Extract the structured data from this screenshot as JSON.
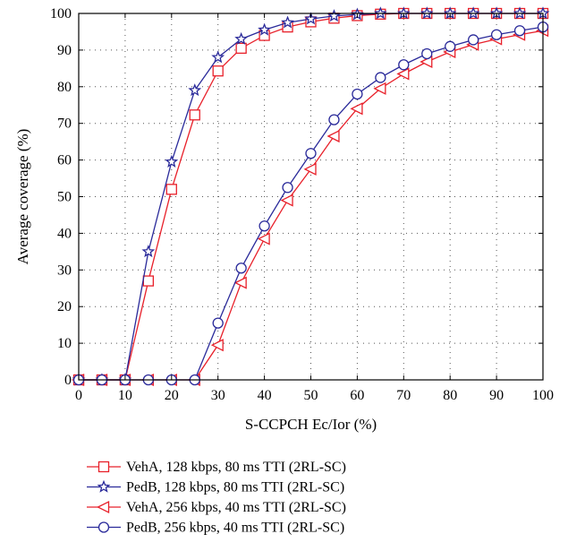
{
  "chart_data": {
    "type": "line",
    "title": "",
    "xlabel": "S-CCPCH Ec/Ior (%)",
    "ylabel": "Average coverage (%)",
    "xlim": [
      0,
      100
    ],
    "ylim": [
      0,
      100
    ],
    "x_ticks": [
      "0",
      "10",
      "20",
      "30",
      "40",
      "50",
      "60",
      "70",
      "80",
      "90",
      "100"
    ],
    "y_ticks": [
      "0",
      "10",
      "20",
      "30",
      "40",
      "50",
      "60",
      "70",
      "80",
      "90",
      "100"
    ],
    "grid": true,
    "legend_position": "below",
    "x": [
      0,
      5,
      10,
      15,
      20,
      25,
      30,
      35,
      40,
      45,
      50,
      55,
      60,
      65,
      70,
      75,
      80,
      85,
      90,
      95,
      100
    ],
    "series": [
      {
        "name": "VehA, 128 kbps, 80 ms TTI (2RL-SC)",
        "marker": "square",
        "color": "#e8202a",
        "values": [
          0,
          0,
          0,
          27,
          52,
          72.3,
          84.3,
          90.5,
          94,
          96.3,
          97.7,
          98.7,
          99.4,
          99.8,
          100,
          100,
          100,
          100,
          100,
          100,
          100
        ]
      },
      {
        "name": "PedB, 128 kbps, 80 ms TTI (2RL-SC)",
        "marker": "star",
        "color": "#2a2a9a",
        "values": [
          0,
          0,
          0,
          35,
          59.5,
          79,
          88,
          93,
          95.5,
          97.5,
          98.5,
          99.3,
          99.7,
          100,
          100,
          100,
          100,
          100,
          100,
          100,
          100
        ]
      },
      {
        "name": "VehA, 256 kbps, 40 ms TTI (2RL-SC)",
        "marker": "triangle-left",
        "color": "#e8202a",
        "values": [
          0,
          0,
          0,
          0,
          0,
          0,
          9.5,
          26.5,
          38.5,
          49,
          57.5,
          66.5,
          74,
          79.5,
          83.5,
          86.8,
          89.5,
          91.5,
          93,
          94.2,
          95.3
        ]
      },
      {
        "name": "PedB, 256 kbps, 40 ms TTI (2RL-SC)",
        "marker": "circle",
        "color": "#2a2a9a",
        "values": [
          0,
          0,
          0,
          0,
          0,
          0,
          15.5,
          30.5,
          42,
          52.5,
          61.8,
          71,
          78,
          82.5,
          86,
          89,
          91,
          92.8,
          94.2,
          95.3,
          96.3
        ]
      }
    ]
  }
}
